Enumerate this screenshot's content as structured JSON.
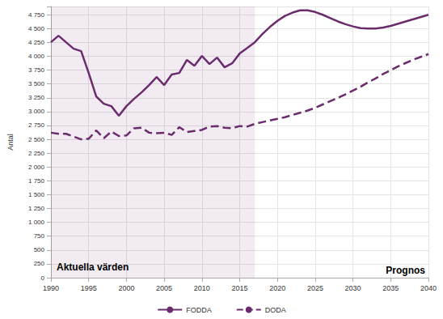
{
  "chart_data": {
    "type": "line",
    "y_label": "Antal",
    "x": [
      1990,
      1991,
      1992,
      1993,
      1994,
      1995,
      1996,
      1997,
      1998,
      1999,
      2000,
      2001,
      2002,
      2003,
      2004,
      2005,
      2006,
      2007,
      2008,
      2009,
      2010,
      2011,
      2012,
      2013,
      2014,
      2015,
      2016,
      2017,
      2018,
      2019,
      2020,
      2021,
      2022,
      2023,
      2024,
      2025,
      2026,
      2027,
      2028,
      2029,
      2030,
      2031,
      2032,
      2033,
      2034,
      2035,
      2036,
      2037,
      2038,
      2039,
      2040
    ],
    "series": [
      {
        "name": "FODDA",
        "color": "#6b2c6e",
        "line_style": "solid",
        "values": [
          4254,
          4371,
          4254,
          4137,
          4094,
          3699,
          3275,
          3143,
          3099,
          2924,
          3099,
          3231,
          3348,
          3480,
          3626,
          3480,
          3670,
          3699,
          3933,
          3830,
          4006,
          3860,
          3977,
          3801,
          3874,
          4050,
          4152,
          4254,
          4400,
          4530,
          4640,
          4730,
          4790,
          4830,
          4830,
          4800,
          4750,
          4690,
          4630,
          4580,
          4540,
          4510,
          4500,
          4500,
          4520,
          4550,
          4590,
          4630,
          4670,
          4710,
          4750
        ]
      },
      {
        "name": "DODA",
        "color": "#6b2c6e",
        "line_style": "dashed",
        "values": [
          2620,
          2600,
          2600,
          2550,
          2500,
          2510,
          2660,
          2520,
          2640,
          2560,
          2570,
          2700,
          2710,
          2620,
          2610,
          2620,
          2580,
          2720,
          2630,
          2650,
          2670,
          2730,
          2740,
          2710,
          2700,
          2740,
          2730,
          2780,
          2810,
          2840,
          2870,
          2900,
          2940,
          2980,
          3020,
          3070,
          3130,
          3190,
          3250,
          3310,
          3380,
          3450,
          3530,
          3600,
          3680,
          3750,
          3820,
          3880,
          3940,
          3990,
          4040
        ]
      }
    ],
    "xlim": [
      1990,
      2040
    ],
    "xticks": [
      1990,
      1995,
      2000,
      2005,
      2010,
      2015,
      2020,
      2025,
      2030,
      2035,
      2040
    ],
    "ylim": [
      0,
      4900
    ],
    "yticks": [
      0,
      250,
      500,
      750,
      {
        "value": 1000,
        "label": "1 000"
      },
      {
        "value": 1250,
        "label": "1 250"
      },
      {
        "value": 1500,
        "label": "1 500"
      },
      {
        "value": 1750,
        "label": "1 750"
      },
      {
        "value": 2000,
        "label": "2 000"
      },
      {
        "value": 2250,
        "label": "2 250"
      },
      {
        "value": 2500,
        "label": "2 500"
      },
      {
        "value": 2750,
        "label": "2 750"
      },
      {
        "value": 3000,
        "label": "3 000"
      },
      {
        "value": 3250,
        "label": "3 250"
      },
      {
        "value": 3500,
        "label": "3 500"
      },
      {
        "value": 3750,
        "label": "3 750"
      },
      {
        "value": 4000,
        "label": "4 000"
      },
      {
        "value": 4250,
        "label": "4 250"
      },
      {
        "value": 4500,
        "label": "4 500"
      },
      {
        "value": 4750,
        "label": "4 750"
      }
    ],
    "annotations": [
      {
        "text": "Aktuella värden",
        "xlim": [
          1990,
          2017
        ]
      },
      {
        "text": "Prognos"
      }
    ],
    "grid": true,
    "legend": "bottom"
  }
}
